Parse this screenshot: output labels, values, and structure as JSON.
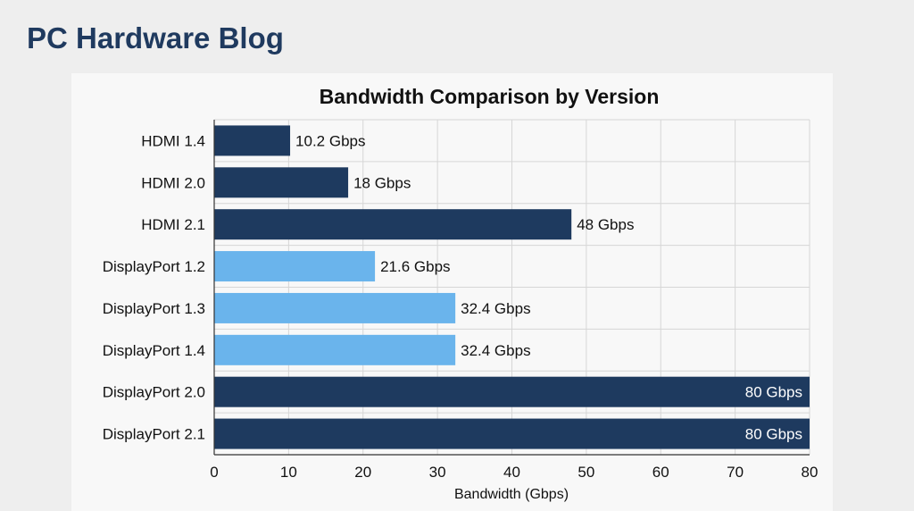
{
  "page": {
    "blog_title": "PC Hardware Blog"
  },
  "colors": {
    "hdmi": "#1e3a5f",
    "displayport_light": "#6ab4ec",
    "grid": "#d6d6d6",
    "axis": "#333333"
  },
  "chart_data": {
    "type": "bar",
    "orientation": "horizontal",
    "title": "Bandwidth Comparison by Version",
    "xlabel": "Bandwidth (Gbps)",
    "ylabel": "",
    "xlim": [
      0,
      80
    ],
    "xticks": [
      0,
      10,
      20,
      30,
      40,
      50,
      60,
      70,
      80
    ],
    "grid": true,
    "categories": [
      "HDMI 1.4",
      "HDMI 2.0",
      "HDMI 2.1",
      "DisplayPort 1.2",
      "DisplayPort 1.3",
      "DisplayPort 1.4",
      "DisplayPort 2.0",
      "DisplayPort 2.1"
    ],
    "values": [
      10.2,
      18,
      48,
      21.6,
      32.4,
      32.4,
      80,
      80
    ],
    "value_labels": [
      "10.2 Gbps",
      "18 Gbps",
      "48 Gbps",
      "21.6 Gbps",
      "32.4 Gbps",
      "32.4 Gbps",
      "80 Gbps",
      "80 Gbps"
    ],
    "bar_colors": [
      "#1e3a5f",
      "#1e3a5f",
      "#1e3a5f",
      "#6ab4ec",
      "#6ab4ec",
      "#6ab4ec",
      "#1e3a5f",
      "#1e3a5f"
    ]
  }
}
